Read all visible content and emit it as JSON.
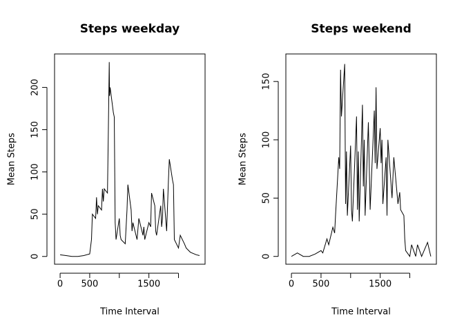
{
  "chart_data": [
    {
      "type": "line",
      "title": "Steps weekday",
      "x_label": "Time Interval",
      "y_label": "Mean Steps",
      "x": [
        0,
        100,
        200,
        300,
        400,
        500,
        530,
        545,
        600,
        615,
        630,
        645,
        700,
        715,
        730,
        745,
        800,
        815,
        830,
        835,
        845,
        900,
        915,
        930,
        945,
        1000,
        1015,
        1030,
        1100,
        1130,
        1145,
        1200,
        1215,
        1230,
        1300,
        1330,
        1400,
        1415,
        1430,
        1500,
        1530,
        1545,
        1600,
        1615,
        1630,
        1700,
        1715,
        1730,
        1745,
        1800,
        1830,
        1845,
        1900,
        1915,
        1930,
        2000,
        2030,
        2100,
        2130,
        2200,
        2300,
        2355
      ],
      "values": [
        2,
        1,
        0,
        0,
        1,
        3,
        20,
        50,
        45,
        70,
        50,
        60,
        55,
        80,
        65,
        80,
        75,
        150,
        230,
        190,
        200,
        170,
        165,
        40,
        20,
        45,
        25,
        20,
        15,
        55,
        85,
        55,
        30,
        40,
        20,
        45,
        25,
        35,
        20,
        40,
        35,
        75,
        60,
        30,
        25,
        60,
        35,
        45,
        80,
        30,
        90,
        115,
        90,
        85,
        20,
        10,
        25,
        15,
        10,
        5,
        2,
        1
      ],
      "color": "#000000",
      "xlim": [
        -94.2,
        2449.2
      ],
      "ylim": [
        -9.2,
        239.6
      ],
      "xticks": [
        0,
        500,
        {
          "value": 1000,
          "label": null
        },
        1500,
        {
          "value": 2000,
          "label": null
        }
      ],
      "yticks": [
        0,
        50,
        100,
        150,
        200
      ]
    },
    {
      "type": "line",
      "title": "Steps weekend",
      "x_label": "Time Interval",
      "y_label": "Mean Steps",
      "x": [
        0,
        100,
        200,
        300,
        400,
        500,
        530,
        600,
        630,
        700,
        730,
        745,
        800,
        815,
        830,
        845,
        900,
        915,
        930,
        945,
        1000,
        1015,
        1030,
        1100,
        1115,
        1130,
        1145,
        1200,
        1215,
        1230,
        1245,
        1300,
        1330,
        1400,
        1415,
        1430,
        1445,
        1500,
        1515,
        1530,
        1545,
        1600,
        1615,
        1630,
        1700,
        1730,
        1800,
        1830,
        1845,
        1900,
        1915,
        1930,
        2000,
        2030,
        2100,
        2130,
        2200,
        2300,
        2355
      ],
      "values": [
        0,
        3,
        0,
        0,
        2,
        5,
        3,
        15,
        10,
        25,
        20,
        35,
        85,
        75,
        160,
        120,
        165,
        45,
        90,
        35,
        95,
        40,
        30,
        120,
        40,
        90,
        30,
        130,
        60,
        100,
        35,
        115,
        40,
        125,
        80,
        145,
        75,
        110,
        80,
        100,
        45,
        85,
        35,
        100,
        50,
        85,
        45,
        55,
        40,
        35,
        15,
        5,
        0,
        10,
        0,
        10,
        0,
        12,
        0
      ],
      "color": "#000000",
      "xlim": [
        -94.2,
        2449.2
      ],
      "ylim": [
        -6.7,
        173.6
      ],
      "xticks": [
        0,
        500,
        {
          "value": 1000,
          "label": null
        },
        1500,
        {
          "value": 2000,
          "label": null
        }
      ],
      "yticks": [
        0,
        50,
        100,
        150
      ]
    }
  ]
}
